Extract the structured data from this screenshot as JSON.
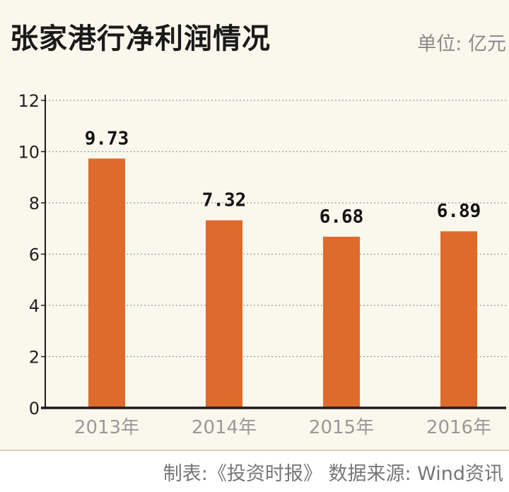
{
  "header": {
    "title": "张家港行净利润情况",
    "unit": "单位: 亿元"
  },
  "footer": {
    "source": "制表:《投资时报》 数据来源: Wind资讯"
  },
  "colors": {
    "bar": "#de6a2c",
    "background": "#faf7ed",
    "gridline": "#9a9a9a",
    "axis": "#1a1a1a"
  },
  "chart_data": {
    "type": "bar",
    "title": "张家港行净利润情况",
    "xlabel": "",
    "ylabel": "",
    "unit": "单位: 亿元",
    "categories": [
      "2013年",
      "2014年",
      "2015年",
      "2016年"
    ],
    "values": [
      9.73,
      7.32,
      6.68,
      6.89
    ],
    "value_labels": [
      "9.73",
      "7.32",
      "6.68",
      "6.89"
    ],
    "ylim": [
      0,
      12
    ],
    "yticks": [
      0,
      2,
      4,
      6,
      8,
      10,
      12
    ],
    "grid": true,
    "grid_style": "dotted",
    "legend": "none"
  }
}
